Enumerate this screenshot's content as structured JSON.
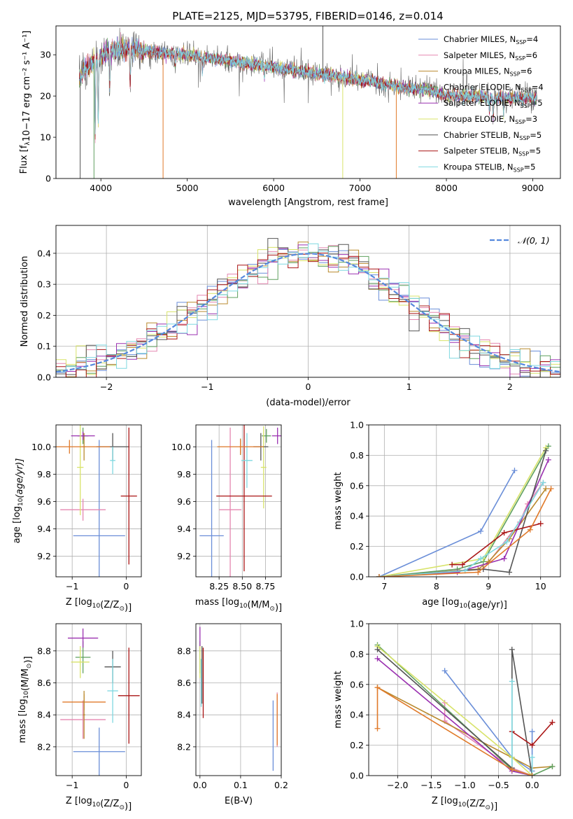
{
  "figure_title": "PLATE=2125, MJD=53795, FIBERID=0146, z=0.014",
  "colors": {
    "palette": [
      "#6a8ed8",
      "#e587b0",
      "#b98a2e",
      "#5fa05f",
      "#9a30b0",
      "#d8e36a",
      "#555555",
      "#aa1515",
      "#7fd8e0",
      "#e07a2a"
    ],
    "gaussian": "#5588dd",
    "grid": "#b0b0b0"
  },
  "chart_data": [
    {
      "id": "spectrum",
      "type": "line",
      "xlabel": "wavelength [Angstrom, rest frame]",
      "ylabel": "Flux [f_λ 10⁻¹⁷ erg cm⁻² s⁻¹ A⁻¹]",
      "xlim": [
        3480,
        9320
      ],
      "ylim": [
        0,
        37
      ],
      "xticks": [
        4000,
        5000,
        6000,
        7000,
        8000,
        9000
      ],
      "yticks": [
        0,
        10,
        20,
        30
      ],
      "grid": false,
      "legend_position": "upper-right",
      "continuum": {
        "x": [
          3750,
          3800,
          3900,
          4000,
          4100,
          4200,
          4300,
          4400,
          4500,
          4700,
          5000,
          5500,
          6000,
          6500,
          7000,
          7400,
          7500,
          7800,
          8000,
          8300,
          8600,
          9050
        ],
        "y": [
          24,
          26,
          28,
          29.5,
          31,
          31.5,
          31.5,
          31.5,
          31,
          30.5,
          30,
          28.5,
          27,
          25.5,
          24,
          22.5,
          22,
          21.5,
          20,
          20,
          19.5,
          19.5
        ]
      },
      "absorption_lines": [
        {
          "x": 3934,
          "depth": 18
        },
        {
          "x": 3969,
          "depth": 16
        },
        {
          "x": 4102,
          "depth": 9
        },
        {
          "x": 4340,
          "depth": 9
        },
        {
          "x": 4861,
          "depth": 3
        },
        {
          "x": 5175,
          "depth": 4
        },
        {
          "x": 5893,
          "depth": 3
        },
        {
          "x": 8498,
          "depth": 3
        },
        {
          "x": 8542,
          "depth": 5
        },
        {
          "x": 8662,
          "depth": 4
        }
      ],
      "spikes": [
        {
          "x": 3760,
          "y_min": 0,
          "color_index": 6
        },
        {
          "x": 3920,
          "y_min": 0,
          "color_index": 3
        },
        {
          "x": 4720,
          "y_min": 0,
          "color_index": 9
        },
        {
          "x": 6800,
          "y_min": 0,
          "color_index": 5
        },
        {
          "x": 7420,
          "y_min": 0,
          "color_index": 9
        },
        {
          "x": 6570,
          "y_max": 37,
          "color_index": 6
        }
      ],
      "series": [
        {
          "name": "Chabrier MILES, N_SSP=4",
          "label_main": "Chabrier MILES, N",
          "label_sub": "SSP",
          "label_end": "=4",
          "color_index": 0
        },
        {
          "name": "Salpeter MILES, N_SSP=6",
          "label_main": "Salpeter MILES, N",
          "label_sub": "SSP",
          "label_end": "=6",
          "color_index": 1
        },
        {
          "name": "Kroupa MILES, N_SSP=6",
          "label_main": "Kroupa MILES, N",
          "label_sub": "SSP",
          "label_end": "=6",
          "color_index": 2
        },
        {
          "name": "Chabrier ELODIE, N_SSP=4",
          "label_main": "Chabrier ELODIE, N",
          "label_sub": "SSP",
          "label_end": "=4",
          "color_index": 3
        },
        {
          "name": "Salpeter ELODIE, N_SSP=5",
          "label_main": "Salpeter ELODIE, N",
          "label_sub": "SSP",
          "label_end": "=5",
          "color_index": 4
        },
        {
          "name": "Kroupa ELODIE, N_SSP=3",
          "label_main": "Kroupa ELODIE, N",
          "label_sub": "SSP",
          "label_end": "=3",
          "color_index": 5
        },
        {
          "name": "Chabrier STELIB, N_SSP=5",
          "label_main": "Chabrier STELIB, N",
          "label_sub": "SSP",
          "label_end": "=5",
          "color_index": 6
        },
        {
          "name": "Salpeter STELIB, N_SSP=5",
          "label_main": "Salpeter STELIB, N",
          "label_sub": "SSP",
          "label_end": "=5",
          "color_index": 7
        },
        {
          "name": "Kroupa STELIB, N_SSP=5",
          "label_main": "Kroupa STELIB, N",
          "label_sub": "SSP",
          "label_end": "=5",
          "color_index": 8
        }
      ]
    },
    {
      "id": "residuals",
      "type": "histogram",
      "xlabel": "(data-model)/error",
      "ylabel": "Normed distribution",
      "xlim": [
        -2.5,
        2.5
      ],
      "ylim": [
        0,
        0.49
      ],
      "xticks": [
        -2,
        -1,
        0,
        1,
        2
      ],
      "yticks": [
        0.0,
        0.1,
        0.2,
        0.3,
        0.4
      ],
      "grid": true,
      "legend_position": "upper-right",
      "gaussian_label": "𝒩(0, 1)",
      "bin_width": 0.1,
      "bin_start": -2.5,
      "bins_count": 50,
      "series_colors": [
        0,
        1,
        2,
        3,
        4,
        5,
        6,
        7,
        8
      ]
    },
    {
      "id": "z-age",
      "type": "errorbar",
      "xlabel_main": "Z [log",
      "xlabel_rest": "(Z/Z",
      "xlabel_end": ")]",
      "ylabel": "age  [log₁₀(age/yr)]",
      "xlim": [
        -1.3,
        0.28
      ],
      "ylim": [
        9.05,
        10.16
      ],
      "xticks": [
        -1,
        0
      ],
      "yticks": [
        9.2,
        9.4,
        9.6,
        9.8,
        10.0
      ],
      "grid": true,
      "points": [
        {
          "x": -0.5,
          "xerr": 0.48,
          "y": 9.35,
          "yerr": 0.7,
          "color_index": 0
        },
        {
          "x": -0.8,
          "xerr": 0.42,
          "y": 9.54,
          "yerr": 0.08,
          "color_index": 1
        },
        {
          "x": -0.78,
          "xerr": 0.03,
          "y": 10.0,
          "yerr": 0.1,
          "color_index": 2
        },
        {
          "x": -0.8,
          "xerr": 0.1,
          "y": 10.08,
          "yerr": 0.06,
          "color_index": 3
        },
        {
          "x": -0.8,
          "xerr": 0.22,
          "y": 10.08,
          "yerr": 0.03,
          "color_index": 4
        },
        {
          "x": -0.85,
          "xerr": 0.06,
          "y": 9.85,
          "yerr": 0.35,
          "color_index": 5
        },
        {
          "x": -0.25,
          "xerr": 0.3,
          "y": 10.0,
          "yerr": 0.1,
          "color_index": 6
        },
        {
          "x": 0.05,
          "xerr": 0.15,
          "y": 9.64,
          "yerr": 0.5,
          "color_index": 7
        },
        {
          "x": -0.25,
          "xerr": 0.05,
          "y": 9.9,
          "yerr": 0.1,
          "color_index": 8
        },
        {
          "x": -1.05,
          "xerr": 0.75,
          "y": 10.0,
          "yerr": 0.05,
          "color_index": 9
        }
      ]
    },
    {
      "id": "mass-age",
      "type": "errorbar",
      "xlabel_main": "mass [log",
      "xlabel_rest": "(M/M",
      "xlabel_end": ")]",
      "ylabel": "",
      "xlim": [
        8.0,
        8.92
      ],
      "ylim": [
        9.05,
        10.16
      ],
      "xticks": [
        8.25,
        8.5,
        8.75
      ],
      "xtick_labels": [
        "8.25",
        "8.50",
        "8.75"
      ],
      "yticks": [
        9.2,
        9.4,
        9.6,
        9.8,
        10.0
      ],
      "grid": true,
      "points": [
        {
          "x": 8.17,
          "xerr": 0.13,
          "y": 9.35,
          "yerr": 0.7,
          "color_index": 0
        },
        {
          "x": 8.37,
          "xerr": 0.12,
          "y": 9.54,
          "yerr": 0.6,
          "color_index": 1
        },
        {
          "x": 8.48,
          "xerr": 0.01,
          "y": 10.0,
          "yerr": 0.06,
          "color_index": 2
        },
        {
          "x": 8.76,
          "xerr": 0.05,
          "y": 10.08,
          "yerr": 0.05,
          "color_index": 3
        },
        {
          "x": 8.88,
          "xerr": 0.06,
          "y": 10.08,
          "yerr": 0.06,
          "color_index": 4
        },
        {
          "x": 8.73,
          "xerr": 0.03,
          "y": 9.85,
          "yerr": 0.3,
          "color_index": 5
        },
        {
          "x": 8.7,
          "xerr": 0.08,
          "y": 10.0,
          "yerr": 0.1,
          "color_index": 6
        },
        {
          "x": 8.52,
          "xerr": 0.3,
          "y": 9.64,
          "yerr": 0.55,
          "color_index": 7
        },
        {
          "x": 8.55,
          "xerr": 0.06,
          "y": 9.9,
          "yerr": 0.2,
          "color_index": 8
        },
        {
          "x": 8.48,
          "xerr": 0.25,
          "y": 10.0,
          "yerr": 0.05,
          "color_index": 9
        }
      ]
    },
    {
      "id": "age-weight",
      "type": "line",
      "xlabel_main": "age  [log",
      "xlabel_rest": "(age/yr)]",
      "ylabel": "mass weight",
      "xlim": [
        6.7,
        10.38
      ],
      "ylim": [
        0,
        1.0
      ],
      "xticks": [
        7,
        8,
        9,
        10
      ],
      "yticks": [
        0.0,
        0.2,
        0.4,
        0.6,
        0.8,
        1.0
      ],
      "grid": true,
      "series": [
        {
          "x": [
            6.9,
            8.85,
            9.5
          ],
          "y": [
            0.0,
            0.3,
            0.7
          ],
          "color_index": 0
        },
        {
          "x": [
            6.9,
            8.4,
            8.9,
            9.6,
            9.75,
            10.05
          ],
          "y": [
            0.0,
            0.04,
            0.05,
            0.36,
            0.48,
            0.62
          ],
          "color_index": 1
        },
        {
          "x": [
            6.9,
            8.8,
            9.0,
            9.4,
            10.1
          ],
          "y": [
            0.0,
            0.05,
            0.1,
            0.25,
            0.58
          ],
          "color_index": 2
        },
        {
          "x": [
            6.9,
            8.4,
            8.9,
            10.15
          ],
          "y": [
            0.0,
            0.05,
            0.1,
            0.86
          ],
          "color_index": 3
        },
        {
          "x": [
            6.9,
            8.4,
            9.3,
            10.15
          ],
          "y": [
            0.0,
            0.03,
            0.12,
            0.77
          ],
          "color_index": 4
        },
        {
          "x": [
            6.9,
            8.9,
            10.1
          ],
          "y": [
            0.0,
            0.12,
            0.85
          ],
          "color_index": 5
        },
        {
          "x": [
            6.9,
            8.9,
            9.4,
            10.1
          ],
          "y": [
            0.0,
            0.05,
            0.03,
            0.83
          ],
          "color_index": 6
        },
        {
          "x": [
            8.3,
            8.5,
            9.3,
            10.0
          ],
          "y": [
            0.08,
            0.08,
            0.29,
            0.35
          ],
          "color_index": 7
        },
        {
          "x": [
            6.9,
            8.55,
            8.85,
            9.35,
            10.05
          ],
          "y": [
            0.0,
            0.04,
            0.12,
            0.23,
            0.62
          ],
          "color_index": 8
        },
        {
          "x": [
            6.9,
            8.8,
            9.8,
            10.2
          ],
          "y": [
            0.0,
            0.03,
            0.31,
            0.58
          ],
          "color_index": 9
        }
      ]
    },
    {
      "id": "z-mass",
      "type": "errorbar",
      "xlabel_main": "Z [log",
      "xlabel_rest": "(Z/Z",
      "xlabel_end": ")]",
      "ylabel_main": "mass [log",
      "ylabel_rest": "(M/M",
      "ylabel_end": ")]",
      "xlim": [
        -1.3,
        0.28
      ],
      "ylim": [
        8.02,
        8.97
      ],
      "xticks": [
        -1,
        0
      ],
      "yticks": [
        8.2,
        8.4,
        8.6,
        8.8
      ],
      "grid": true,
      "points": [
        {
          "x": -0.5,
          "xerr": 0.48,
          "y": 8.17,
          "yerr": 0.15,
          "color_index": 0
        },
        {
          "x": -0.8,
          "xerr": 0.42,
          "y": 8.37,
          "yerr": 0.12,
          "color_index": 1
        },
        {
          "x": -0.78,
          "xerr": 0.4,
          "y": 8.48,
          "yerr": 0.05,
          "color_index": 9
        },
        {
          "x": -0.8,
          "xerr": 0.14,
          "y": 8.76,
          "yerr": 0.1,
          "color_index": 3
        },
        {
          "x": -0.8,
          "xerr": 0.28,
          "y": 8.88,
          "yerr": 0.06,
          "color_index": 4
        },
        {
          "x": -0.85,
          "xerr": 0.17,
          "y": 8.73,
          "yerr": 0.1,
          "color_index": 5
        },
        {
          "x": -0.25,
          "xerr": 0.15,
          "y": 8.7,
          "yerr": 0.1,
          "color_index": 6
        },
        {
          "x": 0.05,
          "xerr": 0.2,
          "y": 8.52,
          "yerr": 0.3,
          "color_index": 7
        },
        {
          "x": -0.25,
          "xerr": 0.1,
          "y": 8.55,
          "yerr": 0.2,
          "color_index": 8
        },
        {
          "x": -0.78,
          "xerr": 0.02,
          "y": 8.4,
          "yerr": 0.15,
          "color_index": 2
        }
      ]
    },
    {
      "id": "ebv-mass",
      "type": "errorbar",
      "xlabel": "E(B-V)",
      "ylabel": "",
      "xlim": [
        -0.01,
        0.2
      ],
      "ylim": [
        8.02,
        8.97
      ],
      "xticks": [
        0.0,
        0.1,
        0.2
      ],
      "yticks": [
        8.2,
        8.4,
        8.6,
        8.8
      ],
      "grid": true,
      "points": [
        {
          "x": 0.18,
          "y": 8.27,
          "yerr": 0.22,
          "color_index": 0
        },
        {
          "x": 0.19,
          "y": 8.37,
          "yerr": 0.17,
          "color_index": 1
        },
        {
          "x": 0.19,
          "y": 8.37,
          "yerr": 0.16,
          "color_index": 9
        },
        {
          "x": 0.0,
          "y": 8.76,
          "yerr": 0.1,
          "color_index": 3
        },
        {
          "x": 0.0,
          "y": 8.88,
          "yerr": 0.07,
          "color_index": 4
        },
        {
          "x": 0.0,
          "y": 8.73,
          "yerr": 0.1,
          "color_index": 5
        },
        {
          "x": 0.005,
          "y": 8.65,
          "yerr": 0.18,
          "color_index": 6
        },
        {
          "x": 0.008,
          "y": 8.6,
          "yerr": 0.22,
          "color_index": 7
        },
        {
          "x": 0.003,
          "y": 8.6,
          "yerr": 0.15,
          "color_index": 8
        }
      ]
    },
    {
      "id": "z-weight",
      "type": "line",
      "xlabel_main": "Z [log",
      "xlabel_rest": "(Z/Z",
      "xlabel_end": ")]",
      "ylabel": "mass weight",
      "xlim": [
        -2.43,
        0.42
      ],
      "ylim": [
        0,
        1.0
      ],
      "xticks": [
        -2.0,
        -1.5,
        -1.0,
        -0.5,
        0.0
      ],
      "yticks": [
        0.0,
        0.2,
        0.4,
        0.6,
        0.8,
        1.0
      ],
      "grid": true,
      "series": [
        {
          "x": [
            -1.3,
            -0.3,
            0.0,
            0.0
          ],
          "y": [
            0.69,
            0.12,
            0.03,
            0.29
          ],
          "color_index": 0
        },
        {
          "x": [
            -1.3,
            -1.3,
            -0.3,
            0.0
          ],
          "y": [
            0.48,
            0.36,
            0.05,
            0.0
          ],
          "color_index": 1
        },
        {
          "x": [
            -2.3,
            0.0,
            0.3
          ],
          "y": [
            0.58,
            0.05,
            0.06
          ],
          "color_index": 2
        },
        {
          "x": [
            -2.3,
            -0.3,
            0.0,
            0.3
          ],
          "y": [
            0.86,
            0.04,
            0.0,
            0.06
          ],
          "color_index": 3
        },
        {
          "x": [
            -2.3,
            -0.3,
            0.0
          ],
          "y": [
            0.77,
            0.03,
            0.0
          ],
          "color_index": 4
        },
        {
          "x": [
            -2.3,
            -0.3,
            0.0
          ],
          "y": [
            0.85,
            0.12,
            0.0
          ],
          "color_index": 5
        },
        {
          "x": [
            -2.3,
            -0.3,
            -0.3,
            0.0
          ],
          "y": [
            0.83,
            0.05,
            0.83,
            0.0
          ],
          "color_index": 6
        },
        {
          "x": [
            -0.3,
            0.0,
            0.3
          ],
          "y": [
            0.29,
            0.2,
            0.35
          ],
          "color_index": 7
        },
        {
          "x": [
            -0.3,
            -0.3,
            0.0,
            0.0
          ],
          "y": [
            0.62,
            0.04,
            0.0,
            0.12
          ],
          "color_index": 8
        },
        {
          "x": [
            -2.3,
            -2.3,
            -0.3,
            0.0
          ],
          "y": [
            0.31,
            0.58,
            0.04,
            0.0
          ],
          "color_index": 9
        }
      ]
    }
  ]
}
